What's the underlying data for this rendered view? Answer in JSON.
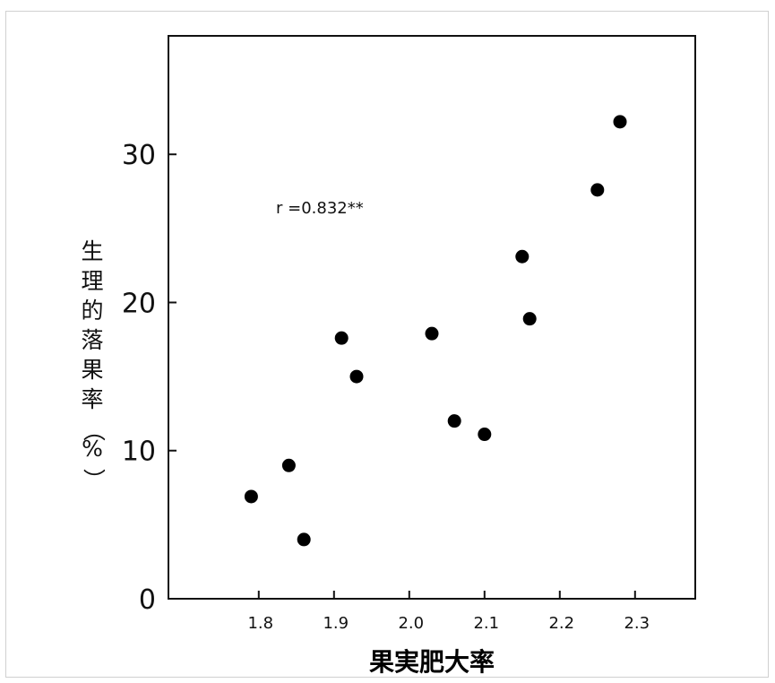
{
  "chart_data": {
    "type": "scatter",
    "title": "",
    "xlabel": "果実肥大率",
    "ylabel": "生理的落果率（%）",
    "xlim": [
      1.68,
      2.38
    ],
    "ylim": [
      0,
      38
    ],
    "x_ticks": [
      1.8,
      1.9,
      2.0,
      2.1,
      2.2,
      2.3
    ],
    "x_tick_labels": [
      "1.8",
      "1.9",
      "2.0",
      "2.1",
      "2.2",
      "2.3"
    ],
    "y_ticks": [
      0,
      10,
      20,
      30
    ],
    "y_tick_labels": [
      "0",
      "10",
      "20",
      "30"
    ],
    "grid": false,
    "legend": "none",
    "annotation": "r =0.832**",
    "marker_color": "#000000",
    "points": [
      {
        "x": 1.79,
        "y": 6.9
      },
      {
        "x": 1.84,
        "y": 9.0
      },
      {
        "x": 1.86,
        "y": 4.0
      },
      {
        "x": 1.91,
        "y": 17.6
      },
      {
        "x": 1.93,
        "y": 15.0
      },
      {
        "x": 2.03,
        "y": 17.9
      },
      {
        "x": 2.06,
        "y": 12.0
      },
      {
        "x": 2.1,
        "y": 11.1
      },
      {
        "x": 2.15,
        "y": 23.1
      },
      {
        "x": 2.16,
        "y": 18.9
      },
      {
        "x": 2.25,
        "y": 27.6
      },
      {
        "x": 2.28,
        "y": 32.2
      }
    ]
  }
}
